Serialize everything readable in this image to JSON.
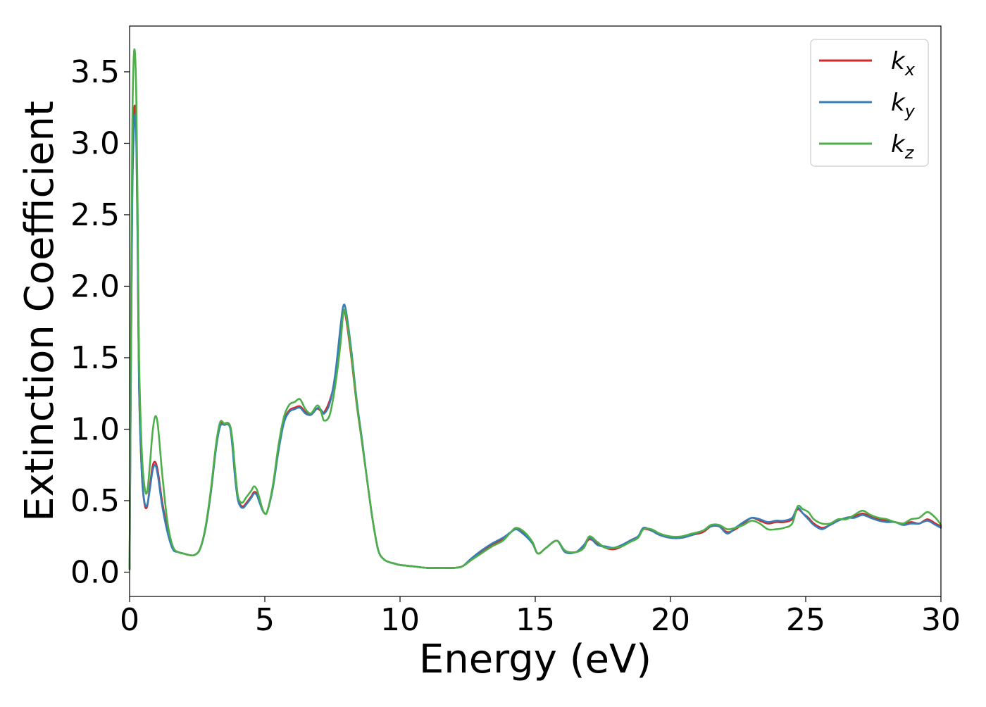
{
  "chart_data": {
    "type": "line",
    "title": "",
    "xlabel": "Energy (eV)",
    "ylabel": "Extinction Coefficient",
    "xlim": [
      0,
      30
    ],
    "ylim": [
      -0.17,
      3.82
    ],
    "xticks": [
      0,
      5,
      10,
      15,
      20,
      25,
      30
    ],
    "xtick_labels": [
      "0",
      "5",
      "10",
      "15",
      "20",
      "25",
      "30"
    ],
    "yticks": [
      0.0,
      0.5,
      1.0,
      1.5,
      2.0,
      2.5,
      3.0,
      3.5
    ],
    "ytick_labels": [
      "0.0",
      "0.5",
      "1.0",
      "1.5",
      "2.0",
      "2.5",
      "3.0",
      "3.5"
    ],
    "grid": false,
    "legend_position": "top-right",
    "series": [
      {
        "name": "k",
        "subscript": "x",
        "color": "#d62728",
        "x": [
          0,
          0.05,
          0.1,
          0.15,
          0.2,
          0.25,
          0.3,
          0.35,
          0.45,
          0.55,
          0.65,
          0.75,
          0.85,
          0.95,
          1.05,
          1.2,
          1.4,
          1.6,
          1.8,
          2.0,
          2.2,
          2.4,
          2.6,
          2.8,
          3.0,
          3.2,
          3.35,
          3.5,
          3.7,
          3.8,
          3.9,
          4.0,
          4.1,
          4.2,
          4.3,
          4.5,
          4.6,
          4.7,
          4.8,
          4.9,
          5.0,
          5.1,
          5.3,
          5.5,
          5.7,
          5.9,
          6.1,
          6.3,
          6.5,
          6.7,
          6.9,
          7.0,
          7.1,
          7.2,
          7.4,
          7.6,
          7.8,
          7.9,
          8.0,
          8.2,
          8.4,
          8.6,
          8.8,
          9.0,
          9.2,
          9.4,
          9.6,
          9.8,
          10.0,
          10.5,
          11.0,
          11.5,
          12.0,
          12.3,
          12.6,
          13.0,
          13.4,
          13.8,
          14.1,
          14.3,
          14.6,
          14.9,
          15.1,
          15.4,
          15.8,
          16.1,
          16.5,
          16.8,
          17.0,
          17.3,
          17.6,
          17.9,
          18.2,
          18.5,
          18.8,
          19.0,
          19.3,
          19.6,
          20.0,
          20.4,
          20.8,
          21.2,
          21.5,
          21.8,
          22.1,
          22.4,
          22.7,
          23.0,
          23.3,
          23.6,
          23.9,
          24.2,
          24.5,
          24.7,
          24.9,
          25.1,
          25.3,
          25.6,
          25.9,
          26.2,
          26.5,
          26.8,
          27.1,
          27.4,
          27.7,
          28.0,
          28.3,
          28.6,
          28.9,
          29.2,
          29.5,
          29.8,
          30.0
        ],
        "y": [
          0.02,
          1.5,
          2.7,
          3.15,
          3.26,
          3.05,
          2.3,
          1.3,
          0.7,
          0.48,
          0.46,
          0.6,
          0.74,
          0.77,
          0.7,
          0.5,
          0.3,
          0.17,
          0.14,
          0.13,
          0.12,
          0.12,
          0.16,
          0.3,
          0.55,
          0.88,
          1.03,
          1.04,
          1.03,
          0.9,
          0.68,
          0.52,
          0.47,
          0.46,
          0.48,
          0.53,
          0.56,
          0.55,
          0.5,
          0.44,
          0.41,
          0.43,
          0.6,
          0.85,
          1.05,
          1.13,
          1.15,
          1.16,
          1.12,
          1.1,
          1.14,
          1.14,
          1.12,
          1.12,
          1.2,
          1.35,
          1.65,
          1.82,
          1.78,
          1.5,
          1.17,
          0.9,
          0.62,
          0.35,
          0.15,
          0.09,
          0.07,
          0.06,
          0.05,
          0.04,
          0.03,
          0.03,
          0.03,
          0.04,
          0.08,
          0.14,
          0.19,
          0.23,
          0.28,
          0.3,
          0.27,
          0.2,
          0.13,
          0.17,
          0.22,
          0.15,
          0.14,
          0.18,
          0.23,
          0.2,
          0.17,
          0.16,
          0.18,
          0.22,
          0.25,
          0.3,
          0.29,
          0.26,
          0.24,
          0.24,
          0.26,
          0.28,
          0.32,
          0.32,
          0.28,
          0.3,
          0.34,
          0.38,
          0.36,
          0.34,
          0.35,
          0.35,
          0.37,
          0.44,
          0.41,
          0.38,
          0.34,
          0.31,
          0.33,
          0.36,
          0.38,
          0.39,
          0.41,
          0.39,
          0.37,
          0.36,
          0.35,
          0.34,
          0.35,
          0.34,
          0.37,
          0.34,
          0.32
        ]
      },
      {
        "name": "k",
        "subscript": "y",
        "color": "#377eb8",
        "x": [
          0,
          0.05,
          0.1,
          0.15,
          0.2,
          0.25,
          0.3,
          0.35,
          0.45,
          0.55,
          0.65,
          0.75,
          0.85,
          0.95,
          1.05,
          1.2,
          1.4,
          1.6,
          1.8,
          2.0,
          2.2,
          2.4,
          2.6,
          2.8,
          3.0,
          3.2,
          3.35,
          3.5,
          3.7,
          3.8,
          3.9,
          4.0,
          4.1,
          4.2,
          4.3,
          4.5,
          4.6,
          4.7,
          4.8,
          4.9,
          5.0,
          5.1,
          5.3,
          5.5,
          5.7,
          5.9,
          6.1,
          6.3,
          6.5,
          6.7,
          6.9,
          7.0,
          7.1,
          7.2,
          7.4,
          7.6,
          7.8,
          7.9,
          8.0,
          8.2,
          8.4,
          8.6,
          8.8,
          9.0,
          9.2,
          9.4,
          9.6,
          9.8,
          10.0,
          10.5,
          11.0,
          11.5,
          12.0,
          12.3,
          12.6,
          13.0,
          13.4,
          13.8,
          14.1,
          14.3,
          14.6,
          14.9,
          15.1,
          15.4,
          15.8,
          16.1,
          16.5,
          16.8,
          17.0,
          17.3,
          17.6,
          17.9,
          18.2,
          18.5,
          18.8,
          19.0,
          19.3,
          19.6,
          20.0,
          20.4,
          20.8,
          21.2,
          21.5,
          21.8,
          22.1,
          22.4,
          22.7,
          23.0,
          23.3,
          23.6,
          23.9,
          24.2,
          24.5,
          24.7,
          24.9,
          25.1,
          25.3,
          25.6,
          25.9,
          26.2,
          26.5,
          26.8,
          27.1,
          27.4,
          27.7,
          28.0,
          28.3,
          28.6,
          28.9,
          29.2,
          29.5,
          29.8,
          30.0
        ],
        "y": [
          0.02,
          1.45,
          2.6,
          3.05,
          3.2,
          3.0,
          2.25,
          1.3,
          0.7,
          0.49,
          0.47,
          0.58,
          0.71,
          0.75,
          0.67,
          0.47,
          0.28,
          0.16,
          0.14,
          0.13,
          0.12,
          0.12,
          0.16,
          0.3,
          0.55,
          0.87,
          1.02,
          1.03,
          1.02,
          0.88,
          0.66,
          0.51,
          0.46,
          0.45,
          0.47,
          0.52,
          0.55,
          0.54,
          0.49,
          0.44,
          0.41,
          0.43,
          0.59,
          0.84,
          1.04,
          1.12,
          1.14,
          1.15,
          1.11,
          1.1,
          1.14,
          1.15,
          1.13,
          1.11,
          1.18,
          1.38,
          1.72,
          1.86,
          1.83,
          1.55,
          1.2,
          0.92,
          0.62,
          0.35,
          0.15,
          0.09,
          0.07,
          0.06,
          0.05,
          0.04,
          0.03,
          0.03,
          0.03,
          0.04,
          0.09,
          0.15,
          0.2,
          0.24,
          0.28,
          0.3,
          0.26,
          0.2,
          0.13,
          0.17,
          0.22,
          0.14,
          0.14,
          0.19,
          0.24,
          0.19,
          0.18,
          0.17,
          0.19,
          0.22,
          0.25,
          0.31,
          0.29,
          0.26,
          0.24,
          0.24,
          0.26,
          0.29,
          0.32,
          0.32,
          0.27,
          0.31,
          0.35,
          0.38,
          0.37,
          0.35,
          0.36,
          0.36,
          0.38,
          0.45,
          0.41,
          0.37,
          0.33,
          0.3,
          0.33,
          0.36,
          0.38,
          0.38,
          0.4,
          0.38,
          0.36,
          0.35,
          0.35,
          0.33,
          0.34,
          0.34,
          0.36,
          0.33,
          0.31
        ]
      },
      {
        "name": "k",
        "subscript": "z",
        "color": "#4daf4a",
        "x": [
          0,
          0.05,
          0.1,
          0.15,
          0.2,
          0.25,
          0.3,
          0.35,
          0.45,
          0.55,
          0.65,
          0.75,
          0.85,
          0.95,
          1.05,
          1.2,
          1.4,
          1.6,
          1.8,
          2.0,
          2.2,
          2.4,
          2.6,
          2.8,
          3.0,
          3.2,
          3.35,
          3.5,
          3.7,
          3.8,
          3.9,
          4.0,
          4.1,
          4.2,
          4.3,
          4.5,
          4.6,
          4.7,
          4.8,
          4.9,
          5.0,
          5.1,
          5.3,
          5.5,
          5.7,
          5.9,
          6.1,
          6.3,
          6.5,
          6.7,
          6.9,
          7.0,
          7.1,
          7.2,
          7.4,
          7.6,
          7.8,
          7.9,
          8.0,
          8.2,
          8.4,
          8.6,
          8.8,
          9.0,
          9.2,
          9.4,
          9.6,
          9.8,
          10.0,
          10.5,
          11.0,
          11.5,
          12.0,
          12.3,
          12.6,
          13.0,
          13.4,
          13.8,
          14.1,
          14.3,
          14.6,
          14.9,
          15.1,
          15.4,
          15.8,
          16.1,
          16.5,
          16.8,
          17.0,
          17.3,
          17.6,
          17.9,
          18.2,
          18.5,
          18.8,
          19.0,
          19.3,
          19.6,
          20.0,
          20.4,
          20.8,
          21.2,
          21.5,
          21.8,
          22.1,
          22.4,
          22.7,
          23.0,
          23.3,
          23.6,
          23.9,
          24.2,
          24.5,
          24.7,
          24.9,
          25.1,
          25.3,
          25.6,
          25.9,
          26.2,
          26.5,
          26.8,
          27.1,
          27.4,
          27.7,
          28.0,
          28.3,
          28.6,
          28.9,
          29.2,
          29.5,
          29.8,
          30.0
        ],
        "y": [
          0.02,
          1.7,
          3.1,
          3.58,
          3.63,
          3.3,
          2.5,
          1.5,
          0.85,
          0.6,
          0.56,
          0.75,
          0.98,
          1.09,
          1.02,
          0.7,
          0.35,
          0.18,
          0.14,
          0.13,
          0.12,
          0.12,
          0.16,
          0.31,
          0.57,
          0.9,
          1.05,
          1.04,
          1.03,
          0.93,
          0.72,
          0.54,
          0.49,
          0.49,
          0.52,
          0.57,
          0.6,
          0.58,
          0.52,
          0.45,
          0.41,
          0.43,
          0.61,
          0.88,
          1.08,
          1.17,
          1.19,
          1.21,
          1.14,
          1.11,
          1.16,
          1.16,
          1.11,
          1.06,
          1.1,
          1.3,
          1.6,
          1.81,
          1.8,
          1.52,
          1.18,
          0.9,
          0.62,
          0.35,
          0.15,
          0.09,
          0.07,
          0.06,
          0.05,
          0.04,
          0.03,
          0.03,
          0.03,
          0.04,
          0.08,
          0.13,
          0.18,
          0.22,
          0.28,
          0.31,
          0.28,
          0.21,
          0.13,
          0.17,
          0.22,
          0.15,
          0.14,
          0.17,
          0.25,
          0.21,
          0.17,
          0.17,
          0.18,
          0.21,
          0.24,
          0.3,
          0.3,
          0.27,
          0.25,
          0.25,
          0.27,
          0.29,
          0.33,
          0.33,
          0.3,
          0.31,
          0.33,
          0.36,
          0.34,
          0.3,
          0.3,
          0.31,
          0.34,
          0.46,
          0.44,
          0.42,
          0.37,
          0.34,
          0.34,
          0.37,
          0.37,
          0.4,
          0.43,
          0.4,
          0.38,
          0.37,
          0.35,
          0.34,
          0.37,
          0.38,
          0.42,
          0.38,
          0.33
        ]
      }
    ]
  }
}
